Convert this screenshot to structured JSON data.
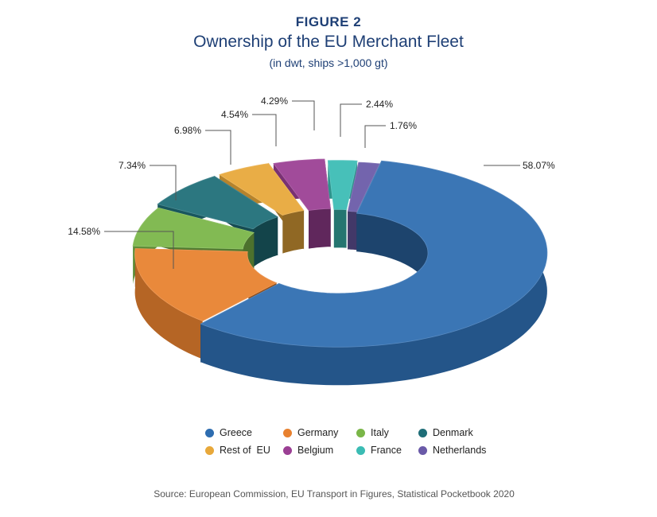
{
  "figure_label": "FIGURE 2",
  "title": "Ownership of the EU Merchant Fleet",
  "subtitle": "(in dwt, ships >1,000 gt)",
  "source": "Source: European Commission, EU Transport in Figures, Statistical Pocketbook 2020",
  "chart_data": {
    "type": "pie",
    "style": "3d exploded donut",
    "legend_position": "bottom",
    "categories": [
      "Greece",
      "Rest of  EU",
      "Italy",
      "Denmark",
      "Germany",
      "Belgium",
      "France",
      "Netherlands"
    ],
    "slices": [
      {
        "name": "Greece",
        "value": 58.07,
        "label": "58.07%",
        "color": "#2e6db0"
      },
      {
        "name": "Germany",
        "value": 14.58,
        "label": "14.58%",
        "color": "#e8812f"
      },
      {
        "name": "Italy",
        "value": 7.34,
        "label": "7.34%",
        "color": "#7ab648"
      },
      {
        "name": "Denmark",
        "value": 6.98,
        "label": "6.98%",
        "color": "#1f6e78"
      },
      {
        "name": "Rest of  EU",
        "value": 4.54,
        "label": "4.54%",
        "color": "#e8a83a"
      },
      {
        "name": "Belgium",
        "value": 4.29,
        "label": "4.29%",
        "color": "#9b3f94"
      },
      {
        "name": "France",
        "value": 2.44,
        "label": "2.44%",
        "color": "#3bbcb4"
      },
      {
        "name": "Netherlands",
        "value": 1.76,
        "label": "1.76%",
        "color": "#6a5aa8"
      }
    ]
  },
  "legend": [
    {
      "label": "Greece",
      "color": "#2e6db0"
    },
    {
      "label": "Germany",
      "color": "#e8812f"
    },
    {
      "label": "Italy",
      "color": "#7ab648"
    },
    {
      "label": "Denmark",
      "color": "#1f6e78"
    },
    {
      "label": "Rest of  EU",
      "color": "#e8a83a"
    },
    {
      "label": "Belgium",
      "color": "#9b3f94"
    },
    {
      "label": "France",
      "color": "#3bbcb4"
    },
    {
      "label": "Netherlands",
      "color": "#6a5aa8"
    }
  ]
}
